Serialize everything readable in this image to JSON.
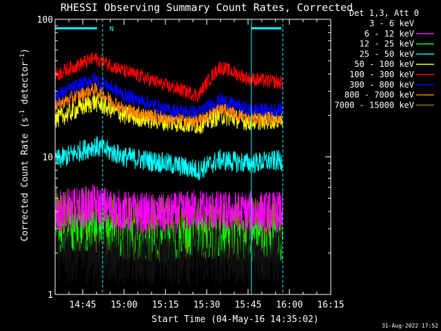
{
  "chart_data": {
    "type": "line",
    "title": "RHESSI Observing Summary Count Rates, Corrected",
    "xlabel": "Start Time (04-May-16 14:35:02)",
    "ylabel": "Corrected Count Rate (s",
    "ylabel_sup": "-1",
    "ylabel_mid": " detector",
    "ylabel_end": ")",
    "y_scale": "log",
    "ylim": [
      1,
      100
    ],
    "y_ticks": [
      "1",
      "10",
      "100"
    ],
    "x_range_minutes": [
      14.583,
      16.25
    ],
    "x_ticks": [
      "14:45",
      "15:00",
      "15:15",
      "15:30",
      "15:45",
      "16:00",
      "16:15"
    ],
    "x_tick_minutes": [
      14.75,
      15.0,
      15.25,
      15.5,
      15.75,
      16.0,
      16.25
    ],
    "legend_header": "Det 1,3, Att 0",
    "legend_placement": "top-right",
    "footer_date": "31-Aug-2022 17:52",
    "night_marker": "N",
    "series": [
      {
        "name": "3 - 6 keV",
        "color": "#000000",
        "base": [
          2.0,
          2.0,
          2.0,
          2.0,
          2.0,
          2.0,
          2.0,
          2.0
        ]
      },
      {
        "name": "6 - 12 keV",
        "color": "#ff00ff",
        "base": [
          4.0,
          4.5,
          4.0,
          3.8,
          4.2,
          4.0,
          4.0,
          4.0
        ]
      },
      {
        "name": "12 - 25 keV",
        "color": "#00ff00",
        "base": [
          2.8,
          3.0,
          2.5,
          2.4,
          2.6,
          2.5,
          2.5,
          2.5
        ]
      },
      {
        "name": "25 - 50 keV",
        "color": "#00ffff",
        "base": [
          9.5,
          12,
          10,
          9.0,
          8.0,
          9.5,
          9.0,
          9.5
        ]
      },
      {
        "name": "50 - 100 keV",
        "color": "#ffff00",
        "base": [
          19,
          25,
          20,
          18,
          17,
          20,
          18,
          19
        ]
      },
      {
        "name": "100 - 300 keV",
        "color": "#ff0000",
        "base": [
          40,
          52,
          42,
          33,
          28,
          45,
          37,
          34
        ]
      },
      {
        "name": "300 - 800 keV",
        "color": "#0000ff",
        "base": [
          28,
          37,
          28,
          22,
          21,
          26,
          22,
          22
        ]
      },
      {
        "name": "800 - 7000 keV",
        "color": "#ff8000",
        "base": [
          24,
          31,
          22,
          19,
          18,
          23,
          19,
          19
        ]
      },
      {
        "name": "7000 - 15000 keV",
        "color": "#808000",
        "base": [
          3.5,
          3.5,
          3.0,
          3.0,
          3.0,
          3.0,
          3.0,
          3.0
        ]
      }
    ],
    "series_base_minutes": [
      14.6,
      14.82,
      15.0,
      15.25,
      15.45,
      15.58,
      15.75,
      16.0
    ]
  }
}
